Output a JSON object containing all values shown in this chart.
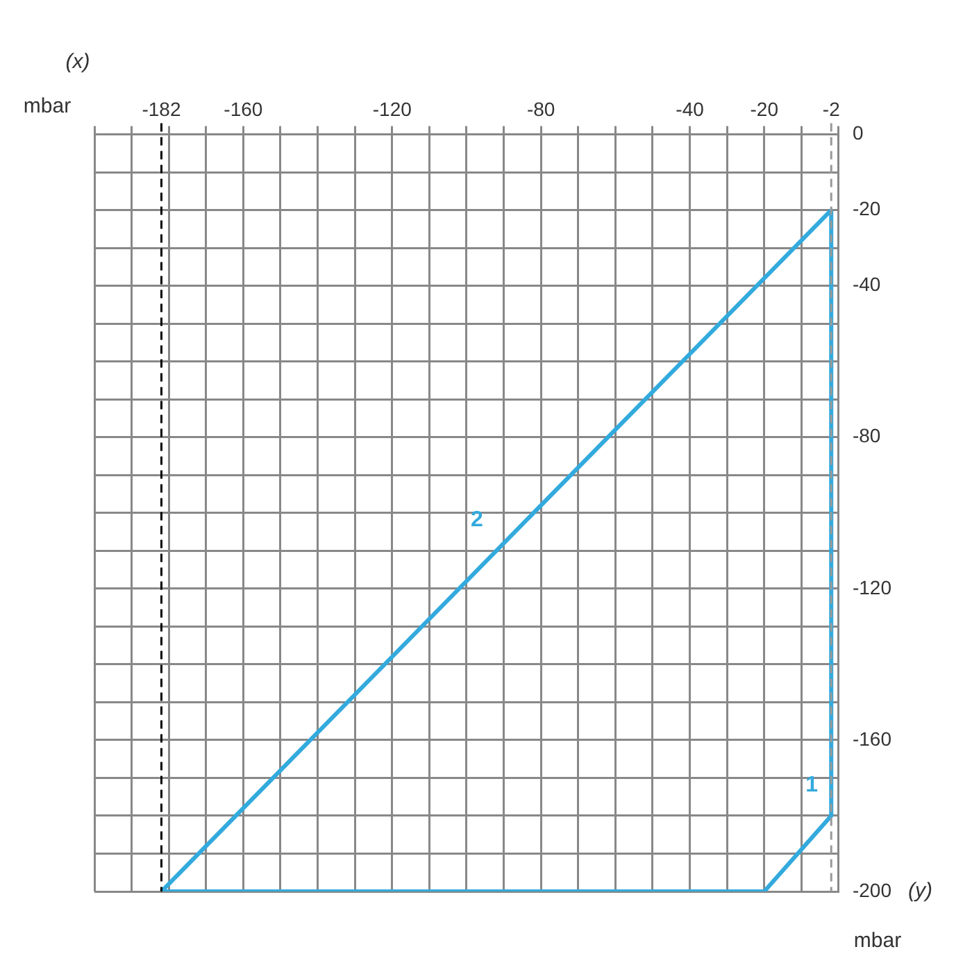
{
  "chart_data": {
    "type": "line",
    "xlabel": "(x)",
    "ylabel": "(y)",
    "series": [
      {
        "name": "1",
        "color": "#33aadd",
        "x": [
          -182,
          -20,
          -2,
          -2
        ],
        "values": [
          -200,
          -200,
          -180,
          -20
        ]
      },
      {
        "name": "2",
        "color": "#33aadd",
        "x": [
          -182,
          -2
        ],
        "values": [
          -200,
          -20
        ]
      }
    ],
    "xlim": [
      -200,
      0
    ],
    "ylim": [
      -200,
      0
    ],
    "xticks": [
      {
        "value": -200,
        "label": null
      },
      {
        "value": -190,
        "label": null
      },
      -182,
      {
        "value": -180,
        "label": null
      },
      {
        "value": -170,
        "label": null
      },
      -160,
      {
        "value": -150,
        "label": null
      },
      {
        "value": -140,
        "label": null
      },
      {
        "value": -130,
        "label": null
      },
      -120,
      {
        "value": -110,
        "label": null
      },
      {
        "value": -100,
        "label": null
      },
      {
        "value": -90,
        "label": null
      },
      -80,
      {
        "value": -70,
        "label": null
      },
      {
        "value": -60,
        "label": null
      },
      {
        "value": -50,
        "label": null
      },
      -40,
      {
        "value": -30,
        "label": null
      },
      -20,
      {
        "value": -10,
        "label": null
      },
      -2,
      {
        "value": 0,
        "label": null
      }
    ],
    "yticks": [
      -200,
      {
        "value": -190,
        "label": null
      },
      {
        "value": -180,
        "label": null
      },
      {
        "value": -170,
        "label": null
      },
      -160,
      {
        "value": -150,
        "label": null
      },
      {
        "value": -140,
        "label": null
      },
      {
        "value": -130,
        "label": null
      },
      -120,
      {
        "value": -110,
        "label": null
      },
      {
        "value": -100,
        "label": null
      },
      {
        "value": -90,
        "label": null
      },
      -80,
      {
        "value": -70,
        "label": null
      },
      {
        "value": -60,
        "label": null
      },
      {
        "value": -50,
        "label": null
      },
      -40,
      {
        "value": -30,
        "label": null
      },
      -20,
      {
        "value": -10,
        "label": null
      },
      0
    ],
    "ref_lines": [
      {
        "axis": "x",
        "value": -182,
        "color": "#000000",
        "line_style": "dashed"
      },
      {
        "axis": "x",
        "value": -2,
        "color": "#999999",
        "line_style": "dashed"
      }
    ],
    "annotations": [
      "mbar",
      "mbar"
    ],
    "grid": true,
    "legend": false,
    "marker": "none",
    "line_style": "solid"
  }
}
